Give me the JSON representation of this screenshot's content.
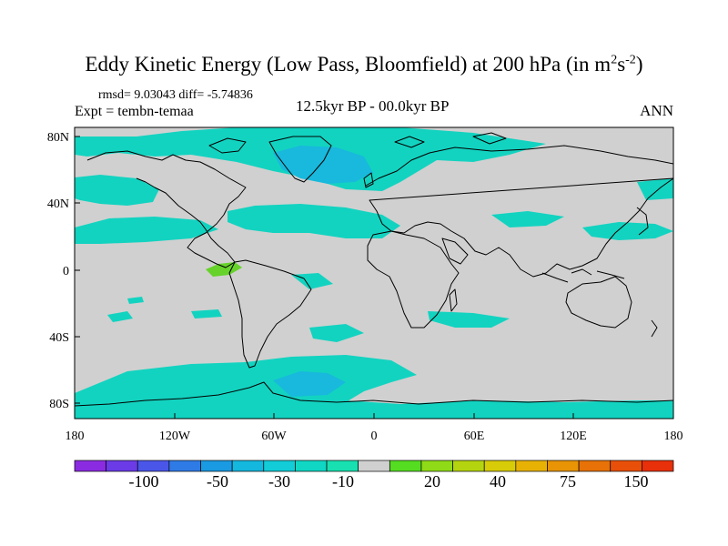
{
  "title": {
    "main": "Eddy Kinetic Energy (Low Pass, Bloomfield) at 200 hPa (in m",
    "sup1": "2",
    "mid": "s",
    "sup2": "-2",
    "end": ")"
  },
  "stats": "rmsd= 9.03043 diff= -5.74836",
  "experiment": "Expt = tembn-temaa",
  "period": "12.5kyr BP - 00.0kyr BP",
  "season": "ANN",
  "axes": {
    "y_ticks": [
      "80N",
      "40N",
      "0",
      "40S",
      "80S"
    ],
    "x_ticks": [
      "180",
      "120W",
      "60W",
      "0",
      "60E",
      "120E",
      "180"
    ]
  },
  "colorbar": {
    "colors": [
      "#8a2be2",
      "#6a3be6",
      "#4a56e8",
      "#2f7be6",
      "#1a9ae2",
      "#14b7de",
      "#12ccd8",
      "#10d7c4",
      "#19e0b0",
      "#d0d0d0",
      "#55dd22",
      "#8fdb18",
      "#b5d410",
      "#d8cc08",
      "#e8b205",
      "#e89405",
      "#e87207",
      "#e85009",
      "#e8300a"
    ],
    "labels": [
      "-100",
      "-50",
      "-30",
      "-10",
      "20",
      "40",
      "75",
      "150"
    ]
  },
  "colors": {
    "background_field": "#d0d0d0",
    "negative_anomaly": "#12d3c0",
    "strong_negative": "#18b9dc",
    "positive_anomaly": "#66d22a"
  }
}
